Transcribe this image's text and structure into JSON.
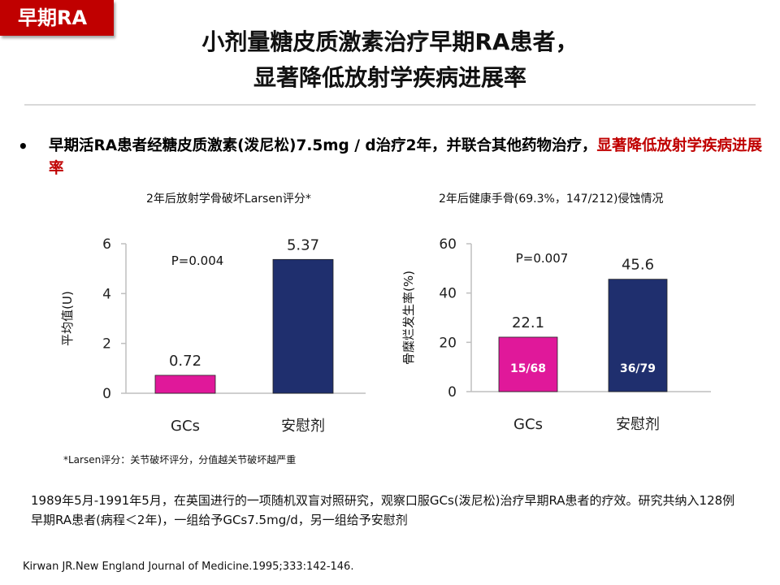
{
  "tag": "早期RA",
  "title": [
    "小剂量糖皮质激素治疗早期RA患者，",
    "显著降低放射学疾病进展率"
  ],
  "bullet": {
    "marker": "•",
    "text": "早期活RA患者经糖皮质激素(泼尼松)7.5mg / d治疗2年，并联合其他药物治疗，",
    "highlight": "显著降低放射学疾病进展率"
  },
  "colors": {
    "accent": "#c00000",
    "gcs_bar": "#e0189a",
    "placebo_bar": "#1f2f6e"
  },
  "chart_data": [
    {
      "type": "bar",
      "title": "2年后放射学骨破坏Larsen评分*",
      "xlabel": "",
      "ylabel": "平均值(U)",
      "categories": [
        "GCs",
        "安慰剂"
      ],
      "values": [
        0.72,
        5.37
      ],
      "value_labels": [
        "0.72",
        "5.37"
      ],
      "ylim": [
        0,
        6
      ],
      "yticks": [
        "0",
        "2",
        "4",
        "6"
      ],
      "annotation": "P=0.004",
      "grid": false
    },
    {
      "type": "bar",
      "title": "2年后健康手骨(69.3%，147/212)侵蚀情况",
      "xlabel": "",
      "ylabel": "骨糜烂发生率(%)",
      "categories": [
        "GCs",
        "安慰剂"
      ],
      "values": [
        22.1,
        45.6
      ],
      "value_labels": [
        "22.1",
        "45.6"
      ],
      "inner_labels": [
        "15/68",
        "36/79"
      ],
      "ylim": [
        0,
        60
      ],
      "yticks": [
        "0",
        "20",
        "40",
        "60"
      ],
      "annotation": "P=0.007",
      "grid": false
    }
  ],
  "note": "*Larsen评分：关节破坏评分，分值越关节破坏越严重",
  "study": "1989年5月-1991年5月，在英国进行的一项随机双盲对照研究，观察口服GCs(泼尼松)治疗早期RA患者的疗效。研究共纳入128例早期RA患者(病程＜2年)，一组给予GCs7.5mg/d，另一组给予安慰剂",
  "reference": "Kirwan JR.New England Journal of Medicine.1995;333:142-146."
}
